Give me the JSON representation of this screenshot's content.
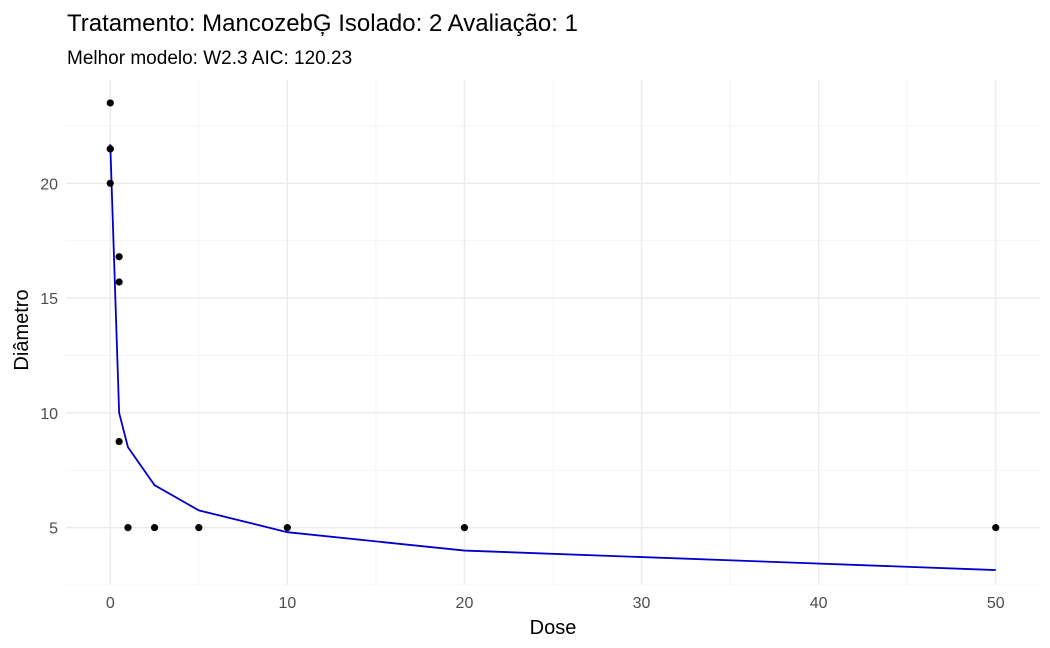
{
  "chart_data": {
    "type": "scatter",
    "title": "Tratamento: MancozebĢ Isolado: 2 Avaliação: 1",
    "subtitle": "Melhor modelo: W2.3 AIC: 120.23",
    "xlabel": "Dose",
    "ylabel": "Diâmetro",
    "xlim": [
      -2.5,
      52.5
    ],
    "ylim": [
      2.5,
      24.5
    ],
    "x_ticks": [
      0,
      10,
      20,
      30,
      40,
      50
    ],
    "x_tick_labels": [
      "0",
      "10",
      "20",
      "30",
      "40",
      "50"
    ],
    "y_ticks": [
      5,
      10,
      15,
      20
    ],
    "y_tick_labels": [
      "5",
      "10",
      "15",
      "20"
    ],
    "grid": true,
    "line_color": "#0000cc",
    "point_color": "#000000",
    "series": [
      {
        "type": "scatter",
        "points": [
          {
            "x": 0,
            "y": 23.5
          },
          {
            "x": 0,
            "y": 21.5
          },
          {
            "x": 0,
            "y": 21.5
          },
          {
            "x": 0,
            "y": 20.0
          },
          {
            "x": 0.5,
            "y": 16.8
          },
          {
            "x": 0.5,
            "y": 15.7
          },
          {
            "x": 0.5,
            "y": 8.75
          },
          {
            "x": 1,
            "y": 5
          },
          {
            "x": 2.5,
            "y": 5
          },
          {
            "x": 5,
            "y": 5
          },
          {
            "x": 10,
            "y": 5
          },
          {
            "x": 20,
            "y": 5
          },
          {
            "x": 50,
            "y": 5
          }
        ]
      },
      {
        "type": "line",
        "points": [
          {
            "x": 0,
            "y": 21.7
          },
          {
            "x": 0.5,
            "y": 10.0
          },
          {
            "x": 1,
            "y": 8.5
          },
          {
            "x": 2.5,
            "y": 6.85
          },
          {
            "x": 5,
            "y": 5.75
          },
          {
            "x": 10,
            "y": 4.8
          },
          {
            "x": 20,
            "y": 4.0
          },
          {
            "x": 50,
            "y": 3.15
          }
        ]
      }
    ]
  }
}
